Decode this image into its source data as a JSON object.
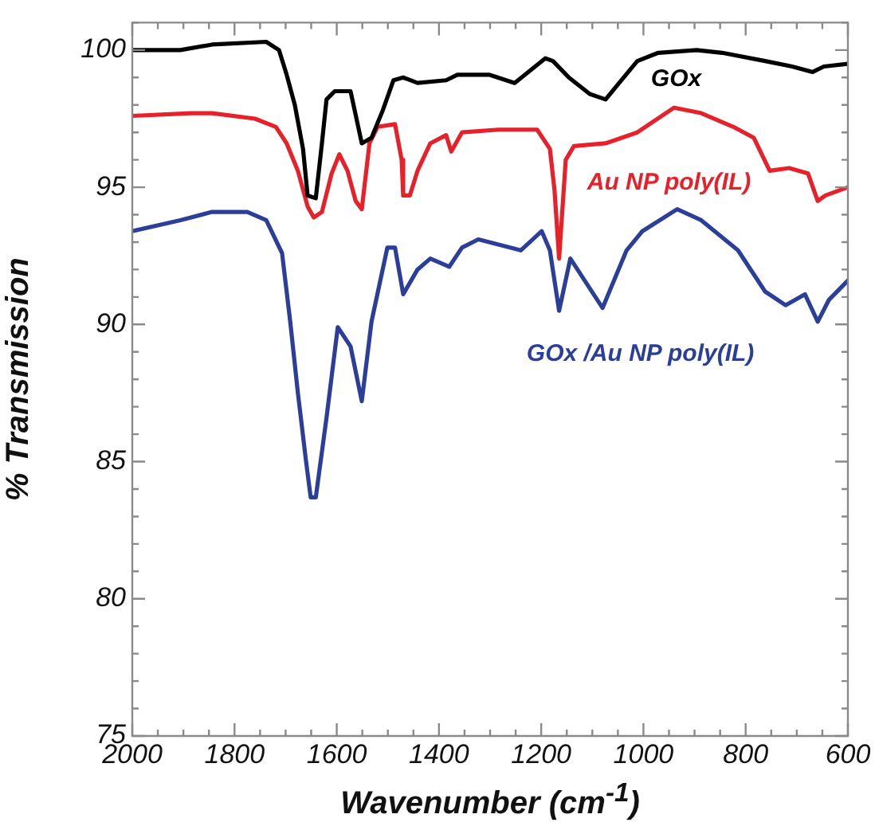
{
  "chart_data": {
    "type": "line",
    "xlabel": "Wavenumber (cm$^{-1}$)",
    "ylabel": "% Transmission",
    "xlim": [
      2000,
      600
    ],
    "ylim": [
      75,
      101
    ],
    "xticks": [
      2000,
      {
        "value": 1950,
        "label": null
      },
      1800,
      {
        "value": 1900,
        "label": null
      },
      {
        "value": 1850,
        "label": null
      },
      {
        "value": 1750,
        "label": null
      },
      1600,
      {
        "value": 1700,
        "label": null
      },
      {
        "value": 1650,
        "label": null
      },
      {
        "value": 1550,
        "label": null
      },
      1400,
      {
        "value": 1500,
        "label": null
      },
      {
        "value": 1450,
        "label": null
      },
      {
        "value": 1350,
        "label": null
      },
      1200,
      {
        "value": 1300,
        "label": null
      },
      {
        "value": 1250,
        "label": null
      },
      {
        "value": 1150,
        "label": null
      },
      1000,
      {
        "value": 1100,
        "label": null
      },
      {
        "value": 1050,
        "label": null
      },
      {
        "value": 950,
        "label": null
      },
      800,
      {
        "value": 900,
        "label": null
      },
      {
        "value": 850,
        "label": null
      },
      {
        "value": 750,
        "label": null
      },
      600,
      {
        "value": 700,
        "label": null
      },
      {
        "value": 650,
        "label": null
      }
    ],
    "yticks": [
      75,
      {
        "value": 76,
        "label": null
      },
      {
        "value": 77,
        "label": null
      },
      {
        "value": 78,
        "label": null
      },
      {
        "value": 79,
        "label": null
      },
      80,
      {
        "value": 81,
        "label": null
      },
      {
        "value": 82,
        "label": null
      },
      {
        "value": 83,
        "label": null
      },
      {
        "value": 84,
        "label": null
      },
      85,
      {
        "value": 86,
        "label": null
      },
      {
        "value": 87,
        "label": null
      },
      {
        "value": 88,
        "label": null
      },
      {
        "value": 89,
        "label": null
      },
      90,
      {
        "value": 91,
        "label": null
      },
      {
        "value": 92,
        "label": null
      },
      {
        "value": 93,
        "label": null
      },
      {
        "value": 94,
        "label": null
      },
      95,
      {
        "value": 96,
        "label": null
      },
      {
        "value": 97,
        "label": null
      },
      {
        "value": 98,
        "label": null
      },
      {
        "value": 99,
        "label": null
      },
      100,
      {
        "value": 101,
        "label": null
      }
    ],
    "grid": false,
    "legend": false,
    "marker": "none",
    "line_style": "solid",
    "series": [
      {
        "name": "GOx",
        "color": "#000000",
        "x": [
          2000,
          1906,
          1844,
          1738,
          1713,
          1698,
          1682,
          1666,
          1657,
          1641,
          1629,
          1620,
          1604,
          1573,
          1551,
          1532,
          1510,
          1489,
          1470,
          1442,
          1386,
          1364,
          1302,
          1252,
          1192,
          1177,
          1146,
          1105,
          1074,
          1052,
          1012,
          971,
          896,
          846,
          762,
          709,
          669,
          647,
          600
        ],
        "values": [
          100.0,
          100.0,
          100.2,
          100.3,
          100.0,
          99.1,
          98.0,
          96.4,
          94.7,
          94.6,
          96.6,
          98.2,
          98.5,
          98.5,
          96.6,
          96.8,
          97.8,
          98.9,
          99.0,
          98.8,
          98.9,
          99.1,
          99.1,
          98.8,
          99.7,
          99.6,
          99.0,
          98.4,
          98.2,
          98.7,
          99.6,
          99.9,
          100.0,
          99.9,
          99.6,
          99.4,
          99.2,
          99.4,
          99.5
        ]
      },
      {
        "name": "Au NP poly(IL)",
        "color": "#e8202a",
        "x": [
          2000,
          1885,
          1844,
          1760,
          1719,
          1698,
          1676,
          1657,
          1645,
          1629,
          1610,
          1595,
          1579,
          1563,
          1551,
          1536,
          1520,
          1486,
          1473,
          1470,
          1457,
          1442,
          1417,
          1386,
          1376,
          1355,
          1283,
          1208,
          1183,
          1174,
          1165,
          1152,
          1136,
          1074,
          1012,
          940,
          887,
          824,
          784,
          753,
          715,
          678,
          659,
          644,
          600
        ],
        "values": [
          97.6,
          97.7,
          97.7,
          97.5,
          97.2,
          96.6,
          95.6,
          94.3,
          93.9,
          94.1,
          95.5,
          96.2,
          95.6,
          94.5,
          94.2,
          96.6,
          97.2,
          97.3,
          96.0,
          94.7,
          94.7,
          95.6,
          96.6,
          96.9,
          96.3,
          97.0,
          97.1,
          97.1,
          96.4,
          94.9,
          92.4,
          96.0,
          96.5,
          96.6,
          97.0,
          97.9,
          97.7,
          97.2,
          96.8,
          95.6,
          95.7,
          95.5,
          94.5,
          94.7,
          95.0
        ]
      },
      {
        "name": "GOx /Au NP poly(IL)",
        "color": "#2b3f9a",
        "x": [
          2000,
          1906,
          1844,
          1775,
          1738,
          1707,
          1691,
          1676,
          1660,
          1651,
          1641,
          1620,
          1598,
          1573,
          1551,
          1532,
          1501,
          1486,
          1470,
          1442,
          1417,
          1380,
          1355,
          1323,
          1240,
          1199,
          1183,
          1165,
          1143,
          1080,
          1033,
          1002,
          934,
          887,
          815,
          762,
          722,
          684,
          659,
          637,
          600
        ],
        "values": [
          93.4,
          93.8,
          94.1,
          94.1,
          93.8,
          92.6,
          90.1,
          87.5,
          85.0,
          83.7,
          83.7,
          86.6,
          89.9,
          89.2,
          87.2,
          90.1,
          92.8,
          92.8,
          91.1,
          92.0,
          92.4,
          92.1,
          92.8,
          93.1,
          92.7,
          93.4,
          92.7,
          90.5,
          92.4,
          90.6,
          92.7,
          93.4,
          94.2,
          93.8,
          92.7,
          91.2,
          90.7,
          91.1,
          90.1,
          90.9,
          91.6
        ]
      }
    ]
  }
}
